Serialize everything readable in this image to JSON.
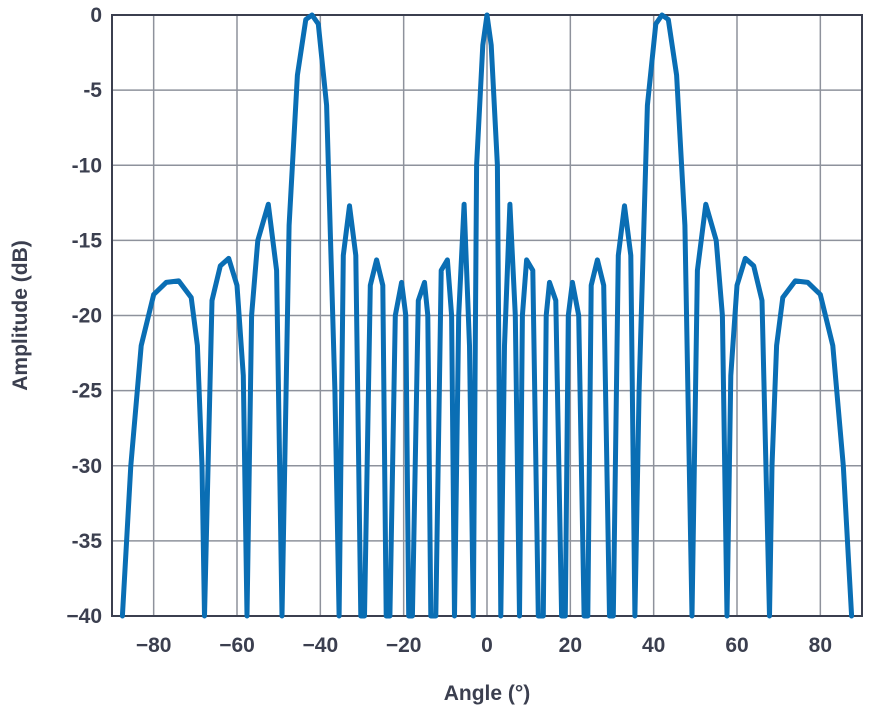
{
  "chart_data": {
    "type": "line",
    "title": "",
    "xlabel": "Angle (°)",
    "ylabel": "Amplitude (dB)",
    "xlim": [
      -90,
      90
    ],
    "ylim": [
      -40,
      0
    ],
    "xticks": [
      -80,
      -60,
      -40,
      -20,
      0,
      20,
      40,
      60,
      80
    ],
    "yticks": [
      0,
      -5,
      -10,
      -15,
      -20,
      -25,
      -30,
      -35,
      -40
    ],
    "xtick_labels": [
      "−80",
      "−60",
      "−40",
      "−20",
      "0",
      "20",
      "40",
      "60",
      "80"
    ],
    "ytick_labels": [
      "0",
      "-5",
      "-10",
      "-15",
      "-20",
      "-25",
      "-30",
      "-35",
      "−40"
    ],
    "grid": true,
    "legend": "none",
    "series": [
      {
        "color": "#0a6eb4",
        "x": [
          -87.5,
          -85.5,
          -83,
          -80,
          -77,
          -74,
          -71,
          -69.5,
          -68.4,
          -67.8,
          -66,
          -64,
          -62,
          -60,
          -58.5,
          -57.6,
          -56.5,
          -55,
          -52.5,
          -50.5,
          -49.2,
          -47.5,
          -45.5,
          -43.5,
          -42,
          -40.5,
          -38.5,
          -36.5,
          -35.5,
          -34.5,
          -33,
          -31.5,
          -30.3,
          -29.4,
          -28,
          -26.5,
          -25,
          -24.2,
          -23.3,
          -22,
          -20.5,
          -19.5,
          -18.8,
          -17.9,
          -16.5,
          -15,
          -14.2,
          -13.5,
          -12.3,
          -11,
          -9.5,
          -8.5,
          -7.8,
          -6.8,
          -5.5,
          -4.2,
          -3.3,
          -2.5,
          -1,
          0,
          1,
          2.5,
          3.3,
          4.2,
          5.5,
          6.8,
          7.8,
          8.5,
          9.5,
          11,
          12.3,
          13.5,
          14.2,
          15,
          16.5,
          17.9,
          18.8,
          19.5,
          20.5,
          22,
          23.3,
          24.2,
          25,
          26.5,
          28,
          29.4,
          30.3,
          31.5,
          33,
          34.5,
          35.5,
          36.5,
          38.5,
          40.5,
          42,
          43.5,
          45.5,
          47.5,
          49.2,
          50.5,
          52.5,
          55,
          56.5,
          57.6,
          58.5,
          60,
          62,
          64,
          66,
          67.8,
          68.4,
          69.5,
          71,
          74,
          77,
          80,
          83,
          85.5,
          87.5
        ],
        "y": [
          -40,
          -30,
          -22,
          -18.6,
          -17.8,
          -17.7,
          -18.8,
          -22,
          -30,
          -40,
          -19,
          -16.7,
          -16.2,
          -18,
          -24,
          -40,
          -20,
          -15,
          -12.6,
          -17,
          -40,
          -14,
          -4,
          -0.3,
          0,
          -0.6,
          -6,
          -25,
          -40,
          -16,
          -12.7,
          -16,
          -40,
          -40,
          -18,
          -16.3,
          -18,
          -40,
          -40,
          -20,
          -17.8,
          -20,
          -40,
          -40,
          -19,
          -17.8,
          -20,
          -40,
          -40,
          -17,
          -16.3,
          -20,
          -40,
          -20,
          -12.6,
          -22,
          -40,
          -10,
          -2,
          0,
          -2,
          -10,
          -40,
          -22,
          -12.6,
          -20,
          -40,
          -20,
          -16.3,
          -17,
          -40,
          -40,
          -20,
          -17.8,
          -19,
          -40,
          -40,
          -20,
          -17.8,
          -20,
          -40,
          -40,
          -18,
          -16.3,
          -18,
          -40,
          -40,
          -16,
          -12.7,
          -16,
          -40,
          -25,
          -6,
          -0.6,
          0,
          -0.3,
          -4,
          -14,
          -40,
          -17,
          -12.6,
          -15,
          -20,
          -40,
          -24,
          -18,
          -16.2,
          -16.7,
          -19,
          -40,
          -30,
          -22,
          -18.8,
          -17.7,
          -17.8,
          -18.6,
          -22,
          -30,
          -40
        ]
      }
    ]
  }
}
